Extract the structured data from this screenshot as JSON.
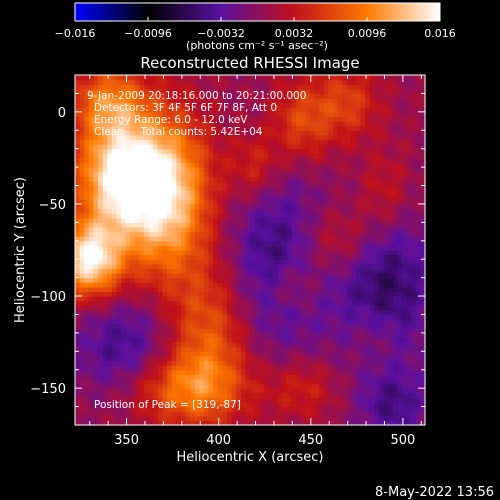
{
  "chart_data": {
    "type": "heatmap",
    "title": "Reconstructed RHESSI Image",
    "xlabel": "Heliocentric X (arcsec)",
    "ylabel": "Heliocentric Y (arcsec)",
    "xlim": [
      322,
      512
    ],
    "ylim": [
      -170,
      20
    ],
    "x_ticks": [
      350,
      400,
      450,
      500
    ],
    "y_ticks": [
      0,
      -50,
      -100,
      -150
    ],
    "annotations": [
      "9-Jan-2009 20:18:16.000 to 20:21:00.000",
      "Detectors: 3F 4F 5F 6F 7F 8F, Att 0",
      "Energy Range: 6.0 - 12.0 keV",
      "Clean     Total counts: 5.42E+04"
    ],
    "peak_label": "Position of Peak = [319,-87]",
    "colorbar": {
      "range": [
        -0.016,
        0.016
      ],
      "tick_labels": [
        "-0.016",
        "-0.0096",
        "-0.0032",
        "0.0032",
        "0.0096",
        "0.016"
      ],
      "unit_label": "(photons cm⁻² s⁻¹ asec⁻²)",
      "colors": [
        "#0000ff",
        "#000000",
        "#5a10a0",
        "#c0101a",
        "#ff7a00",
        "#ffffff"
      ]
    },
    "sources": [
      {
        "x": 370,
        "y": -45,
        "amp": 0.014,
        "sx": 18,
        "sy": 30
      },
      {
        "x": 345,
        "y": -35,
        "amp": 0.0125,
        "sx": 16,
        "sy": 20
      },
      {
        "x": 330,
        "y": -80,
        "amp": 0.015,
        "sx": 12,
        "sy": 14
      },
      {
        "x": 340,
        "y": 5,
        "amp": 0.008,
        "sx": 14,
        "sy": 14
      },
      {
        "x": 395,
        "y": -120,
        "amp": 0.007,
        "sx": 16,
        "sy": 26
      },
      {
        "x": 380,
        "y": -150,
        "amp": 0.008,
        "sx": 24,
        "sy": 14
      },
      {
        "x": 420,
        "y": -30,
        "amp": 0.005,
        "sx": 10,
        "sy": 14
      },
      {
        "x": 445,
        "y": -5,
        "amp": 0.006,
        "sx": 12,
        "sy": 16
      },
      {
        "x": 470,
        "y": 5,
        "amp": 0.005,
        "sx": 12,
        "sy": 14
      },
      {
        "x": 465,
        "y": -70,
        "amp": 0.0045,
        "sx": 14,
        "sy": 14
      },
      {
        "x": 490,
        "y": -45,
        "amp": 0.0035,
        "sx": 10,
        "sy": 16
      },
      {
        "x": 440,
        "y": -95,
        "amp": 0.0035,
        "sx": 10,
        "sy": 10
      },
      {
        "x": 445,
        "y": -150,
        "amp": 0.004,
        "sx": 14,
        "sy": 12
      },
      {
        "x": 485,
        "y": -120,
        "amp": 0.0025,
        "sx": 10,
        "sy": 12
      },
      {
        "x": 430,
        "y": -80,
        "amp": -0.006,
        "sx": 20,
        "sy": 40
      },
      {
        "x": 490,
        "y": -95,
        "amp": -0.007,
        "sx": 20,
        "sy": 30
      },
      {
        "x": 350,
        "y": -130,
        "amp": -0.006,
        "sx": 20,
        "sy": 22
      },
      {
        "x": 495,
        "y": -160,
        "amp": -0.005,
        "sx": 14,
        "sy": 14
      }
    ]
  },
  "footer": {
    "date_stamp": "8-May-2022 13:56"
  }
}
